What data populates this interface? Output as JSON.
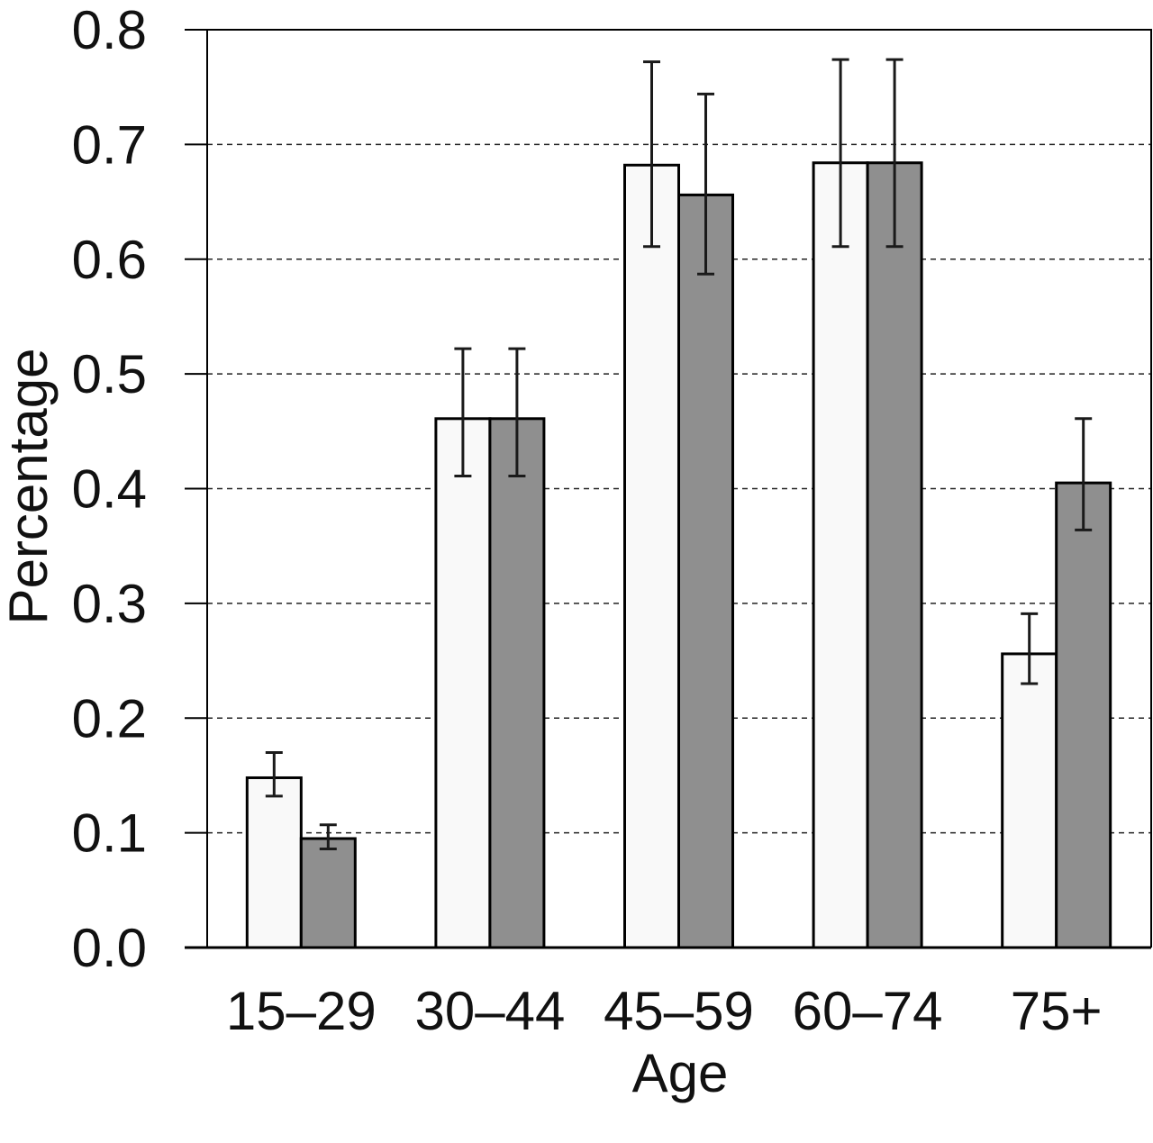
{
  "chart_data": {
    "type": "bar",
    "title": "",
    "xlabel": "Age",
    "ylabel": "Percentage",
    "ylim": [
      0,
      0.8
    ],
    "yticks": [
      "0.0",
      "0.1",
      "0.2",
      "0.3",
      "0.4",
      "0.5",
      "0.6",
      "0.7",
      "0.8"
    ],
    "categories": [
      "15–29",
      "30–44",
      "45–59",
      "60–74",
      "75+"
    ],
    "grid": "horizontal dashed",
    "legend": "none",
    "series": [
      {
        "color": "#f9f9f9",
        "values": [
          0.148,
          0.461,
          0.682,
          0.684,
          0.256
        ],
        "error_low": [
          0.132,
          0.411,
          0.611,
          0.611,
          0.23
        ],
        "error_high": [
          0.17,
          0.522,
          0.772,
          0.774,
          0.291
        ]
      },
      {
        "color": "#8f8f8f",
        "values": [
          0.095,
          0.461,
          0.656,
          0.684,
          0.405
        ],
        "error_low": [
          0.086,
          0.411,
          0.587,
          0.611,
          0.364
        ],
        "error_high": [
          0.107,
          0.522,
          0.744,
          0.774,
          0.461
        ]
      }
    ]
  }
}
